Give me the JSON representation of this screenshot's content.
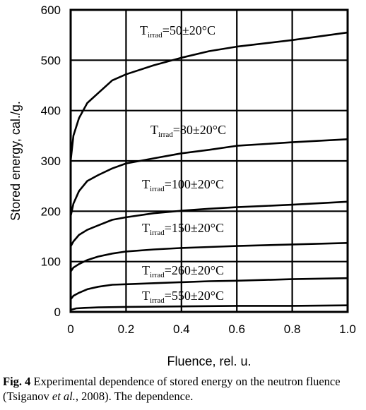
{
  "chart_data": {
    "type": "line",
    "title": "",
    "xlabel": "Fluence, rel. u.",
    "ylabel": "Stored energy, cal./g.",
    "xlim": [
      0,
      1.0
    ],
    "ylim": [
      0,
      600
    ],
    "x_ticks": [
      "0",
      "0.2",
      "0.4",
      "0.6",
      "0.8",
      "1.0"
    ],
    "y_ticks": [
      "0",
      "100",
      "200",
      "300",
      "400",
      "500",
      "600"
    ],
    "grid": true,
    "series": [
      {
        "label_main": "T",
        "label_sub": "irrad",
        "label_rest": "=50±20°C",
        "points": [
          [
            0,
            300
          ],
          [
            0.01,
            350
          ],
          [
            0.03,
            385
          ],
          [
            0.06,
            415
          ],
          [
            0.1,
            435
          ],
          [
            0.15,
            460
          ],
          [
            0.2,
            472
          ],
          [
            0.3,
            490
          ],
          [
            0.4,
            505
          ],
          [
            0.5,
            518
          ],
          [
            0.6,
            527
          ],
          [
            0.8,
            540
          ],
          [
            1.0,
            555
          ]
        ]
      },
      {
        "label_main": "T",
        "label_sub": "irrad",
        "label_rest": "=80±20°C",
        "points": [
          [
            0,
            190
          ],
          [
            0.01,
            215
          ],
          [
            0.03,
            240
          ],
          [
            0.06,
            260
          ],
          [
            0.1,
            272
          ],
          [
            0.15,
            285
          ],
          [
            0.2,
            295
          ],
          [
            0.3,
            305
          ],
          [
            0.4,
            315
          ],
          [
            0.5,
            322
          ],
          [
            0.6,
            330
          ],
          [
            0.8,
            337
          ],
          [
            1.0,
            343
          ]
        ]
      },
      {
        "label_main": "T",
        "label_sub": "irrad",
        "label_rest": "=100±20°C",
        "points": [
          [
            0,
            130
          ],
          [
            0.01,
            140
          ],
          [
            0.03,
            153
          ],
          [
            0.06,
            163
          ],
          [
            0.1,
            172
          ],
          [
            0.15,
            183
          ],
          [
            0.2,
            188
          ],
          [
            0.3,
            196
          ],
          [
            0.4,
            201
          ],
          [
            0.5,
            205
          ],
          [
            0.6,
            208
          ],
          [
            0.8,
            213
          ],
          [
            1.0,
            219
          ]
        ]
      },
      {
        "label_main": "T",
        "label_sub": "irrad",
        "label_rest": "=150±20°C",
        "points": [
          [
            0,
            80
          ],
          [
            0.01,
            88
          ],
          [
            0.03,
            95
          ],
          [
            0.06,
            103
          ],
          [
            0.1,
            110
          ],
          [
            0.15,
            116
          ],
          [
            0.2,
            120
          ],
          [
            0.3,
            124
          ],
          [
            0.4,
            127
          ],
          [
            0.5,
            129
          ],
          [
            0.6,
            131
          ],
          [
            0.8,
            134
          ],
          [
            1.0,
            137
          ]
        ]
      },
      {
        "label_main": "T",
        "label_sub": "irrad",
        "label_rest": "=260±20°C",
        "points": [
          [
            0,
            25
          ],
          [
            0.01,
            32
          ],
          [
            0.03,
            38
          ],
          [
            0.06,
            45
          ],
          [
            0.1,
            50
          ],
          [
            0.15,
            54
          ],
          [
            0.2,
            55
          ],
          [
            0.3,
            57
          ],
          [
            0.4,
            59
          ],
          [
            0.5,
            61
          ],
          [
            0.6,
            62
          ],
          [
            0.8,
            65
          ],
          [
            1.0,
            67
          ]
        ]
      },
      {
        "label_main": "T",
        "label_sub": "irrad",
        "label_rest": "=550±20°C",
        "points": [
          [
            0,
            4
          ],
          [
            0.02,
            7
          ],
          [
            0.05,
            8
          ],
          [
            0.1,
            9
          ],
          [
            0.2,
            10
          ],
          [
            0.4,
            11
          ],
          [
            0.6,
            12
          ],
          [
            0.8,
            12
          ],
          [
            1.0,
            13
          ]
        ]
      }
    ]
  },
  "caption": {
    "fig_label": "Fig. 4",
    "text_before": " Experimental dependence of stored energy on the neutron fluence (Tsiganov ",
    "text_italic": "et al.",
    "text_after": ", 2008). The dependence."
  },
  "colors": {
    "line": "#000000",
    "background": "#ffffff"
  }
}
